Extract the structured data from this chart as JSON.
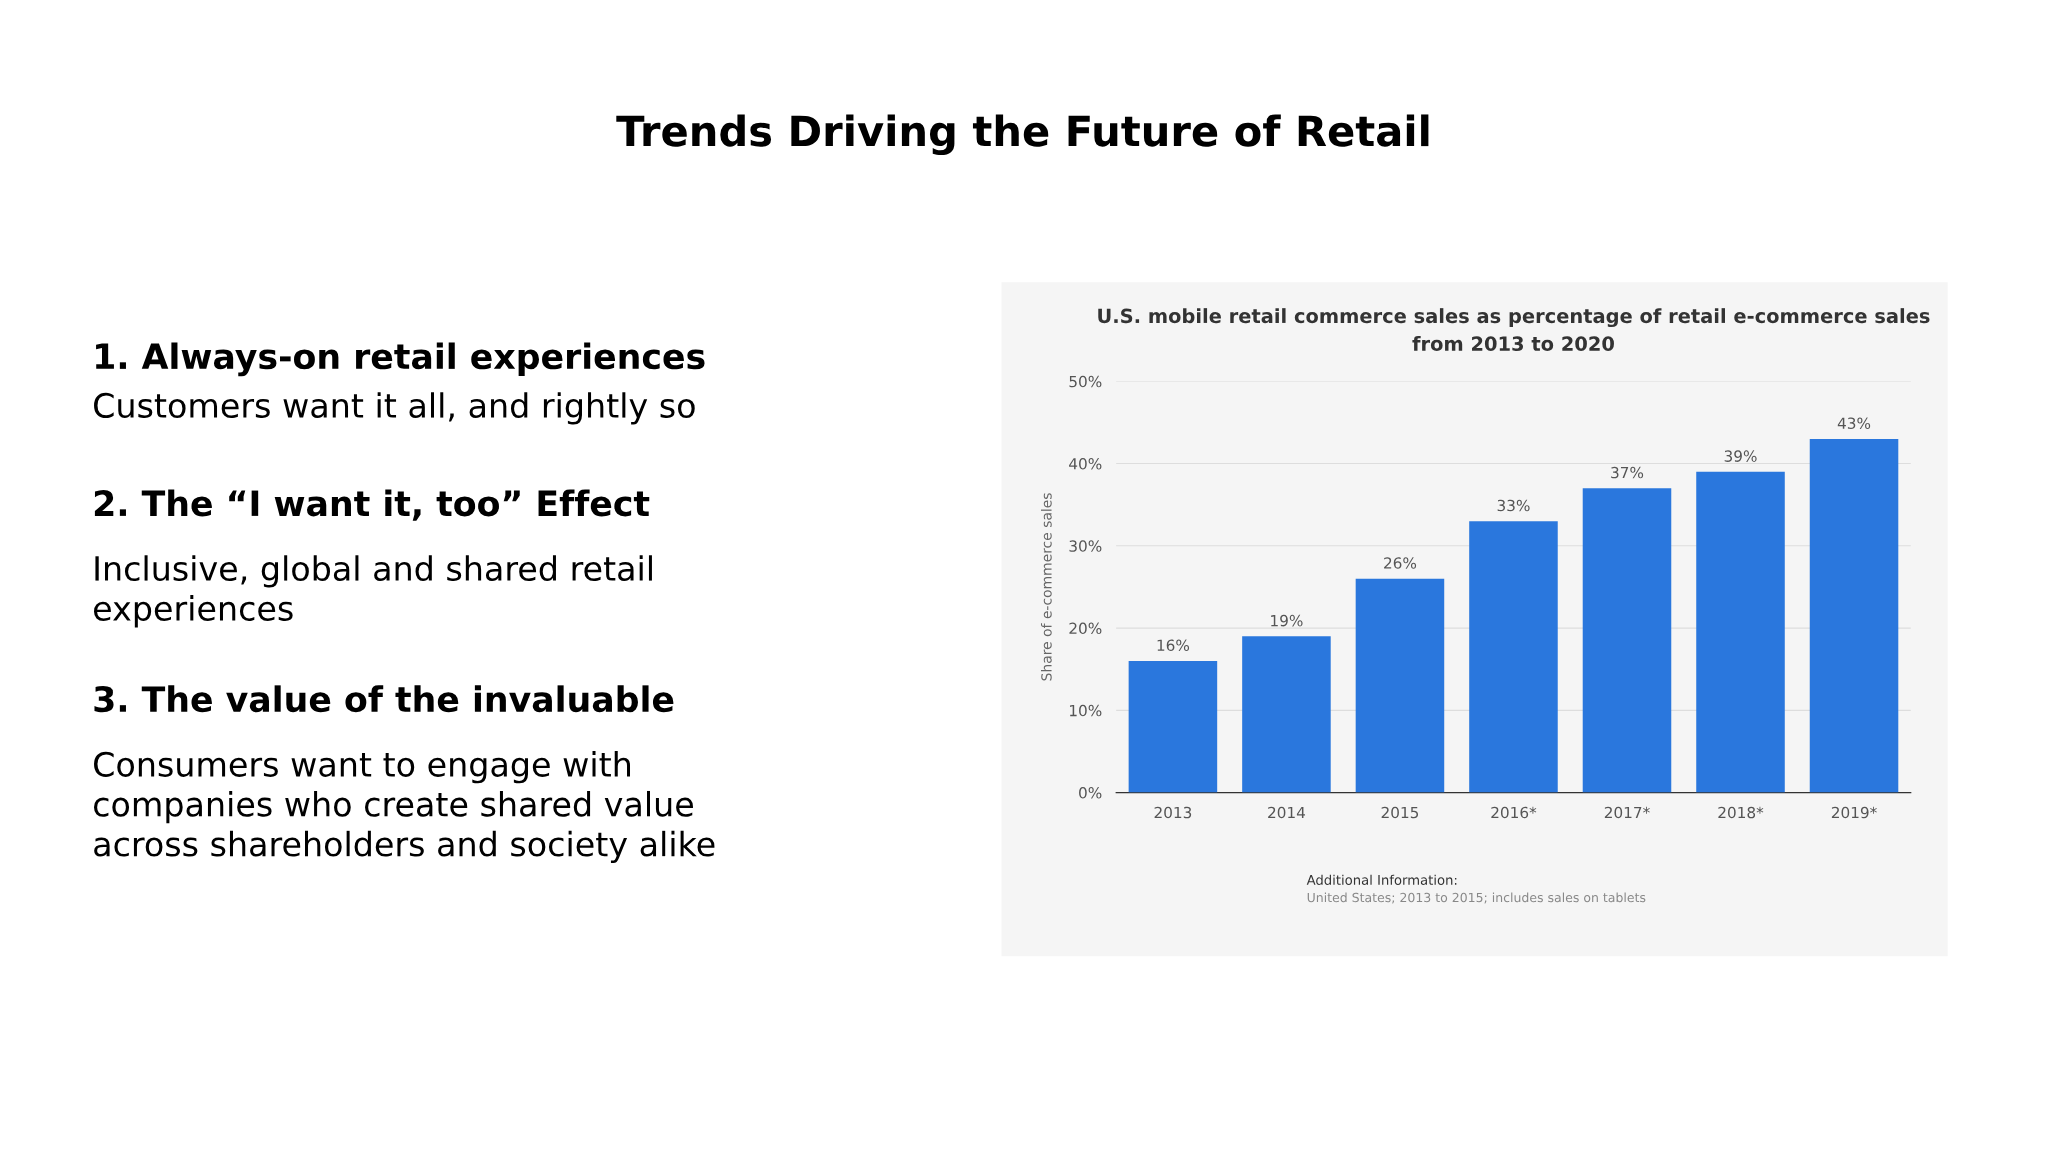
{
  "chart_data": [
    {
      "type": "other",
      "title": "Trends Driving the Future of Retail",
      "annotations": [
        "1. Always-on retail experiences",
        "Customers want it all, and rightly so",
        "2. The “I want it, too” Effect",
        "Inclusive, global and shared retail\nexperiences",
        "3. The value of the invaluable",
        "Consumers want to engage with\ncompanies who create shared value\nacross shareholders and society alike"
      ]
    },
    {
      "type": "bar",
      "title": "U.S. mobile retail commerce sales as percentage of retail e-commerce sales\nfrom 2013 to 2020",
      "ylabel": "Share of e-commerce sales",
      "categories": [
        "2013",
        "2014",
        "2015",
        "2016*",
        "2017*",
        "2018*",
        "2019*"
      ],
      "values": [
        16,
        19,
        26,
        33,
        37,
        39,
        43
      ],
      "value_labels": [
        "16%",
        "19%",
        "26%",
        "33%",
        "37%",
        "39%",
        "43%"
      ],
      "color": "#2a77dd",
      "ylim": [
        0,
        50
      ],
      "yticks": [
        {
          "value": 0,
          "label": "0%"
        },
        {
          "value": 10,
          "label": "10%"
        },
        {
          "value": 20,
          "label": "20%"
        },
        {
          "value": 30,
          "label": "30%"
        },
        {
          "value": 40,
          "label": "40%"
        },
        {
          "value": 50,
          "label": "50%"
        }
      ],
      "grid": "y",
      "annotations": [
        "Additional Information:",
        "United States; 2013 to 2015; includes sales on tablets"
      ]
    }
  ]
}
